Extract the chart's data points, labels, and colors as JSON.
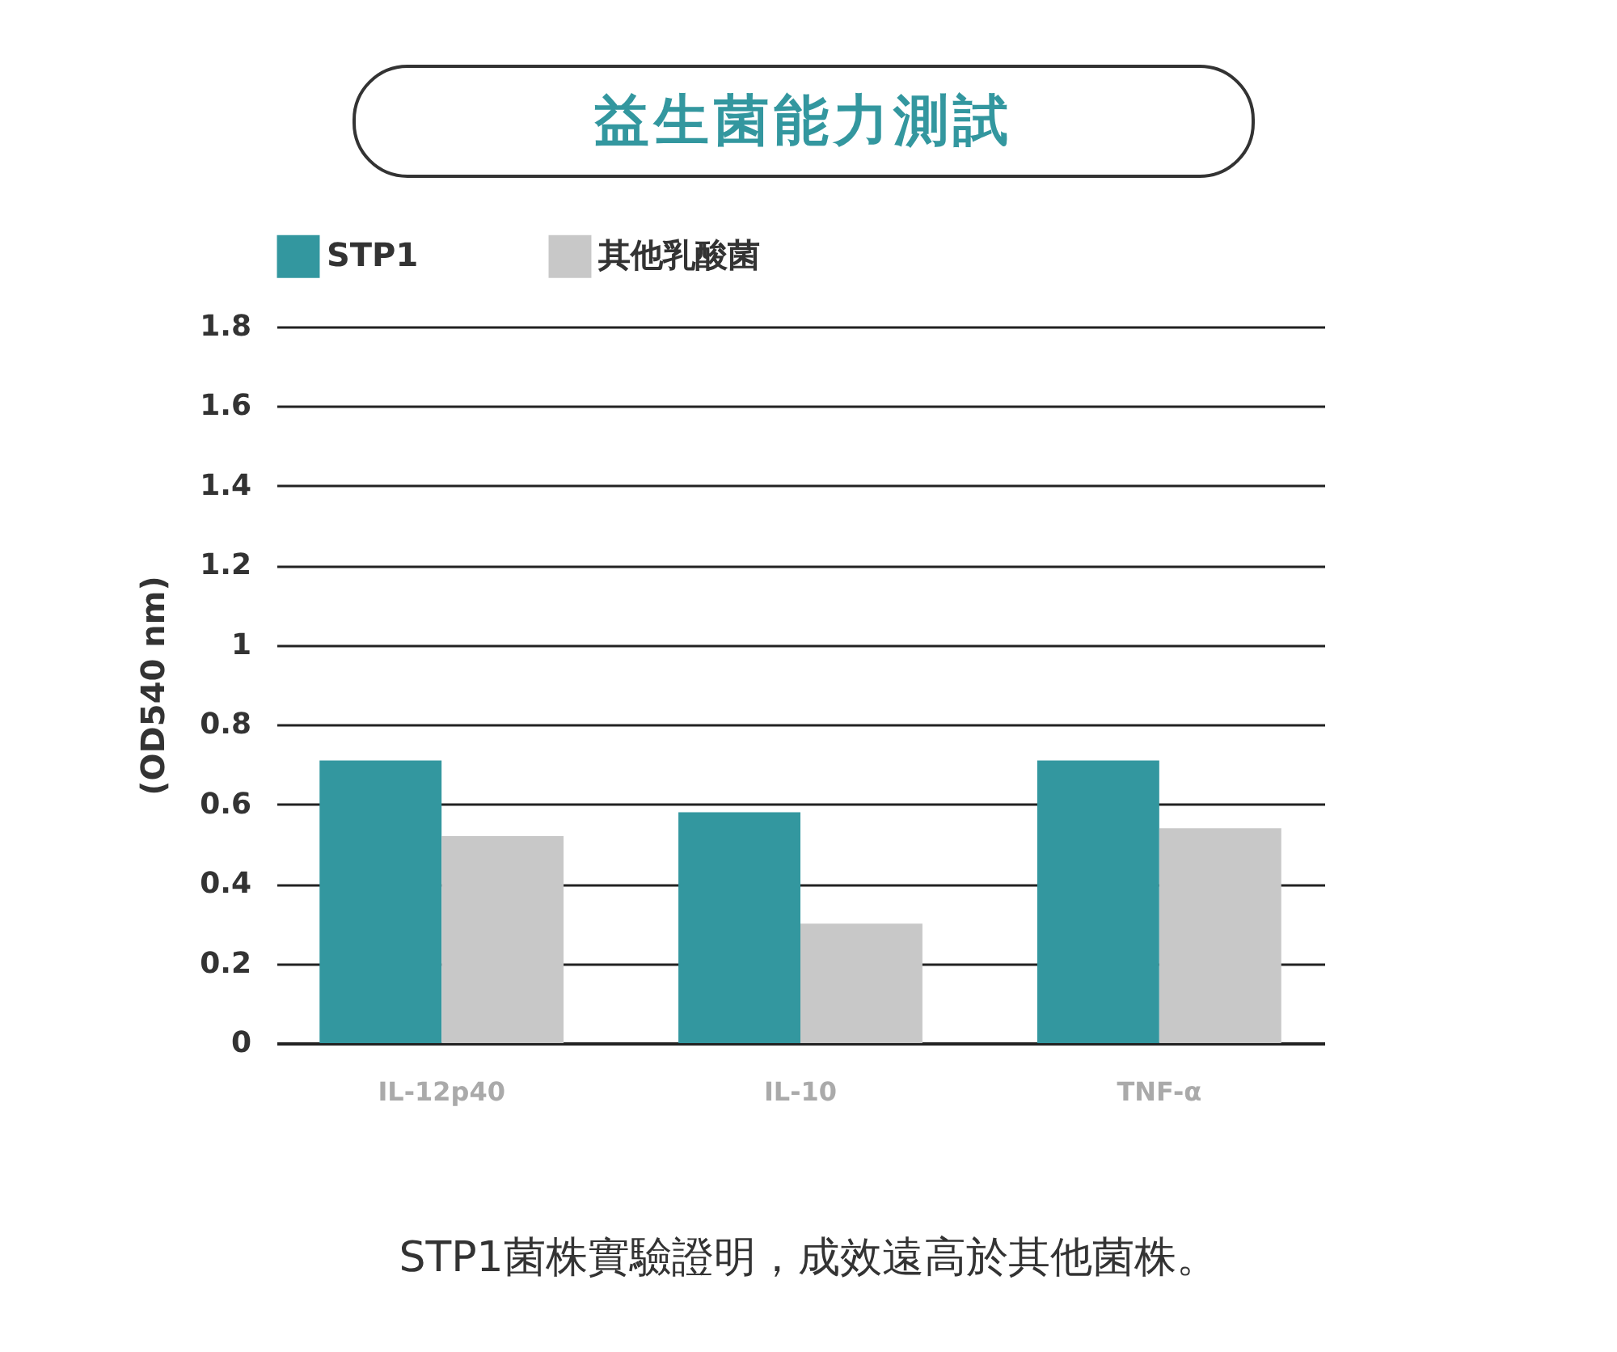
{
  "chart_data": {
    "type": "bar",
    "title": "益生菌能力測試",
    "ylabel": "(OD540 nm)",
    "categories": [
      "IL-12p40",
      "IL-10",
      "TNF-α"
    ],
    "series": [
      {
        "name": "STP1",
        "color": "#33979f",
        "values": [
          0.71,
          0.58,
          0.71
        ]
      },
      {
        "name": "其他乳酸菌",
        "color": "#c8c8c8",
        "values": [
          0.52,
          0.3,
          0.54
        ]
      }
    ],
    "ylim": [
      0,
      1.8
    ],
    "yticks": [
      0,
      0.2,
      0.4,
      0.6,
      0.8,
      1,
      1.2,
      1.4,
      1.6,
      1.8
    ],
    "grid": "y",
    "legend": "top",
    "annotations": [
      "STP1菌株實驗證明，成效遠高於其他菌株。"
    ]
  }
}
